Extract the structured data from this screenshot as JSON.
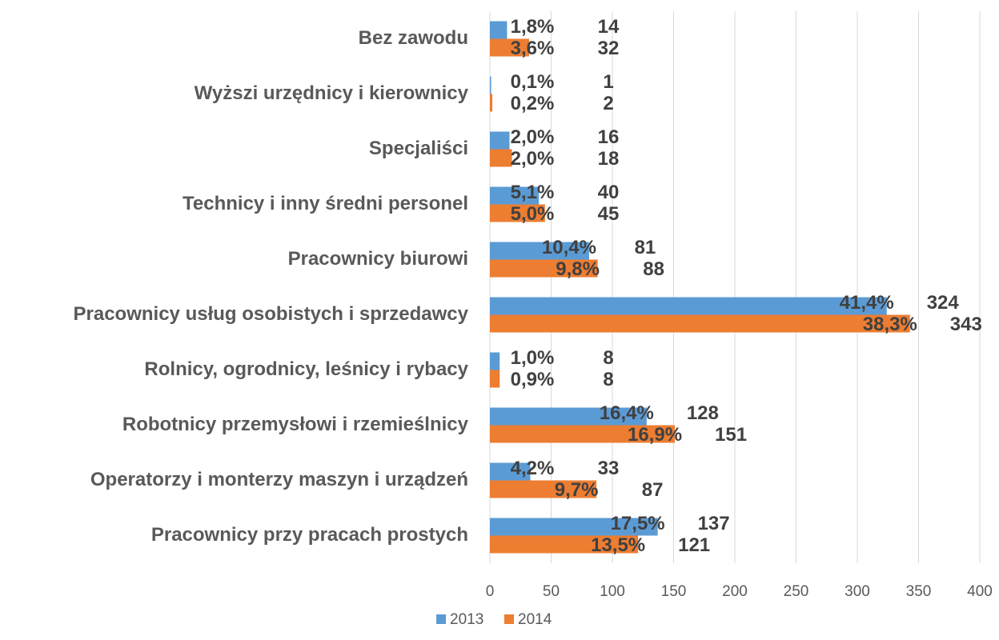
{
  "chart_data": {
    "type": "barh",
    "categories": [
      "Bez zawodu",
      "Wyższi urzędnicy i kierownicy",
      "Specjaliści",
      "Technicy i inny średni personel",
      "Pracownicy biurowi",
      "Pracownicy usług osobistych i sprzedawcy",
      "Rolnicy, ogrodnicy, leśnicy i rybacy",
      "Robotnicy przemysłowi i rzemieślnicy",
      "Operatorzy i monterzy maszyn i urządzeń",
      "Pracownicy przy pracach prostych"
    ],
    "series": [
      {
        "name": "2013",
        "color": "#5b9bd5",
        "values": [
          14,
          1,
          16,
          40,
          81,
          324,
          8,
          128,
          33,
          137
        ],
        "shares": [
          "1,8%",
          "0,1%",
          "2,0%",
          "5,1%",
          "10,4%",
          "41,4%",
          "1,0%",
          "16,4%",
          "4,2%",
          "17,5%"
        ]
      },
      {
        "name": "2014",
        "color": "#ed7d31",
        "values": [
          32,
          2,
          18,
          45,
          88,
          343,
          8,
          151,
          87,
          121
        ],
        "shares": [
          "3,6%",
          "0,2%",
          "2,0%",
          "5,0%",
          "9,8%",
          "38,3%",
          "0,9%",
          "16,9%",
          "9,7%",
          "13,5%"
        ]
      }
    ],
    "xlim": [
      0,
      400
    ],
    "xticks": [
      0,
      50,
      100,
      150,
      200,
      250,
      300,
      350,
      400
    ],
    "grid": true,
    "legend": "bottom"
  }
}
